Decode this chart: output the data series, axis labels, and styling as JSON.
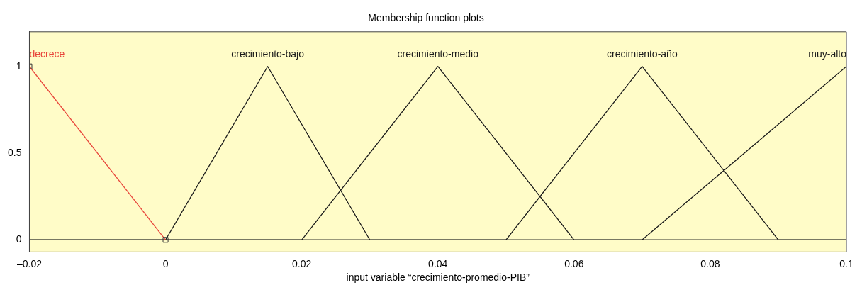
{
  "chart_data": {
    "type": "line",
    "title": "Membership function plots",
    "xlabel": "input variable “crecimiento-promedio-PIB”",
    "series": [
      {
        "name": "decrece",
        "color": "#e8443a",
        "x": [
          -0.02,
          0
        ],
        "values": [
          1,
          0
        ],
        "marker": "square"
      },
      {
        "name": "crecimiento-bajo",
        "color": "#1a1a1a",
        "x": [
          0,
          0.015,
          0.03,
          0.1
        ],
        "values": [
          0,
          1,
          0,
          0
        ]
      },
      {
        "name": "crecimiento-medio",
        "color": "#1a1a1a",
        "x": [
          -0.02,
          0.02,
          0.04,
          0.06,
          0.1
        ],
        "values": [
          0,
          0,
          1,
          0,
          0
        ]
      },
      {
        "name": "crecimiento-año",
        "color": "#1a1a1a",
        "x": [
          -0.02,
          0.05,
          0.07,
          0.09,
          0.1
        ],
        "values": [
          0,
          0,
          1,
          0,
          0
        ]
      },
      {
        "name": "muy-alto",
        "color": "#1a1a1a",
        "x": [
          -0.02,
          0.07,
          0.1
        ],
        "values": [
          0,
          0,
          1
        ]
      }
    ],
    "xlim": [
      -0.02,
      0.1
    ],
    "xticks": [
      {
        "value": -0.02,
        "label": "–0.02"
      },
      0,
      0.02,
      0.04,
      0.06,
      0.08,
      0.1
    ],
    "ylim": [
      -0.07,
      1.2
    ],
    "yticks": [
      0,
      0.5,
      1
    ],
    "grid": false,
    "legend": false,
    "marker": "none",
    "line_style": "solid"
  }
}
